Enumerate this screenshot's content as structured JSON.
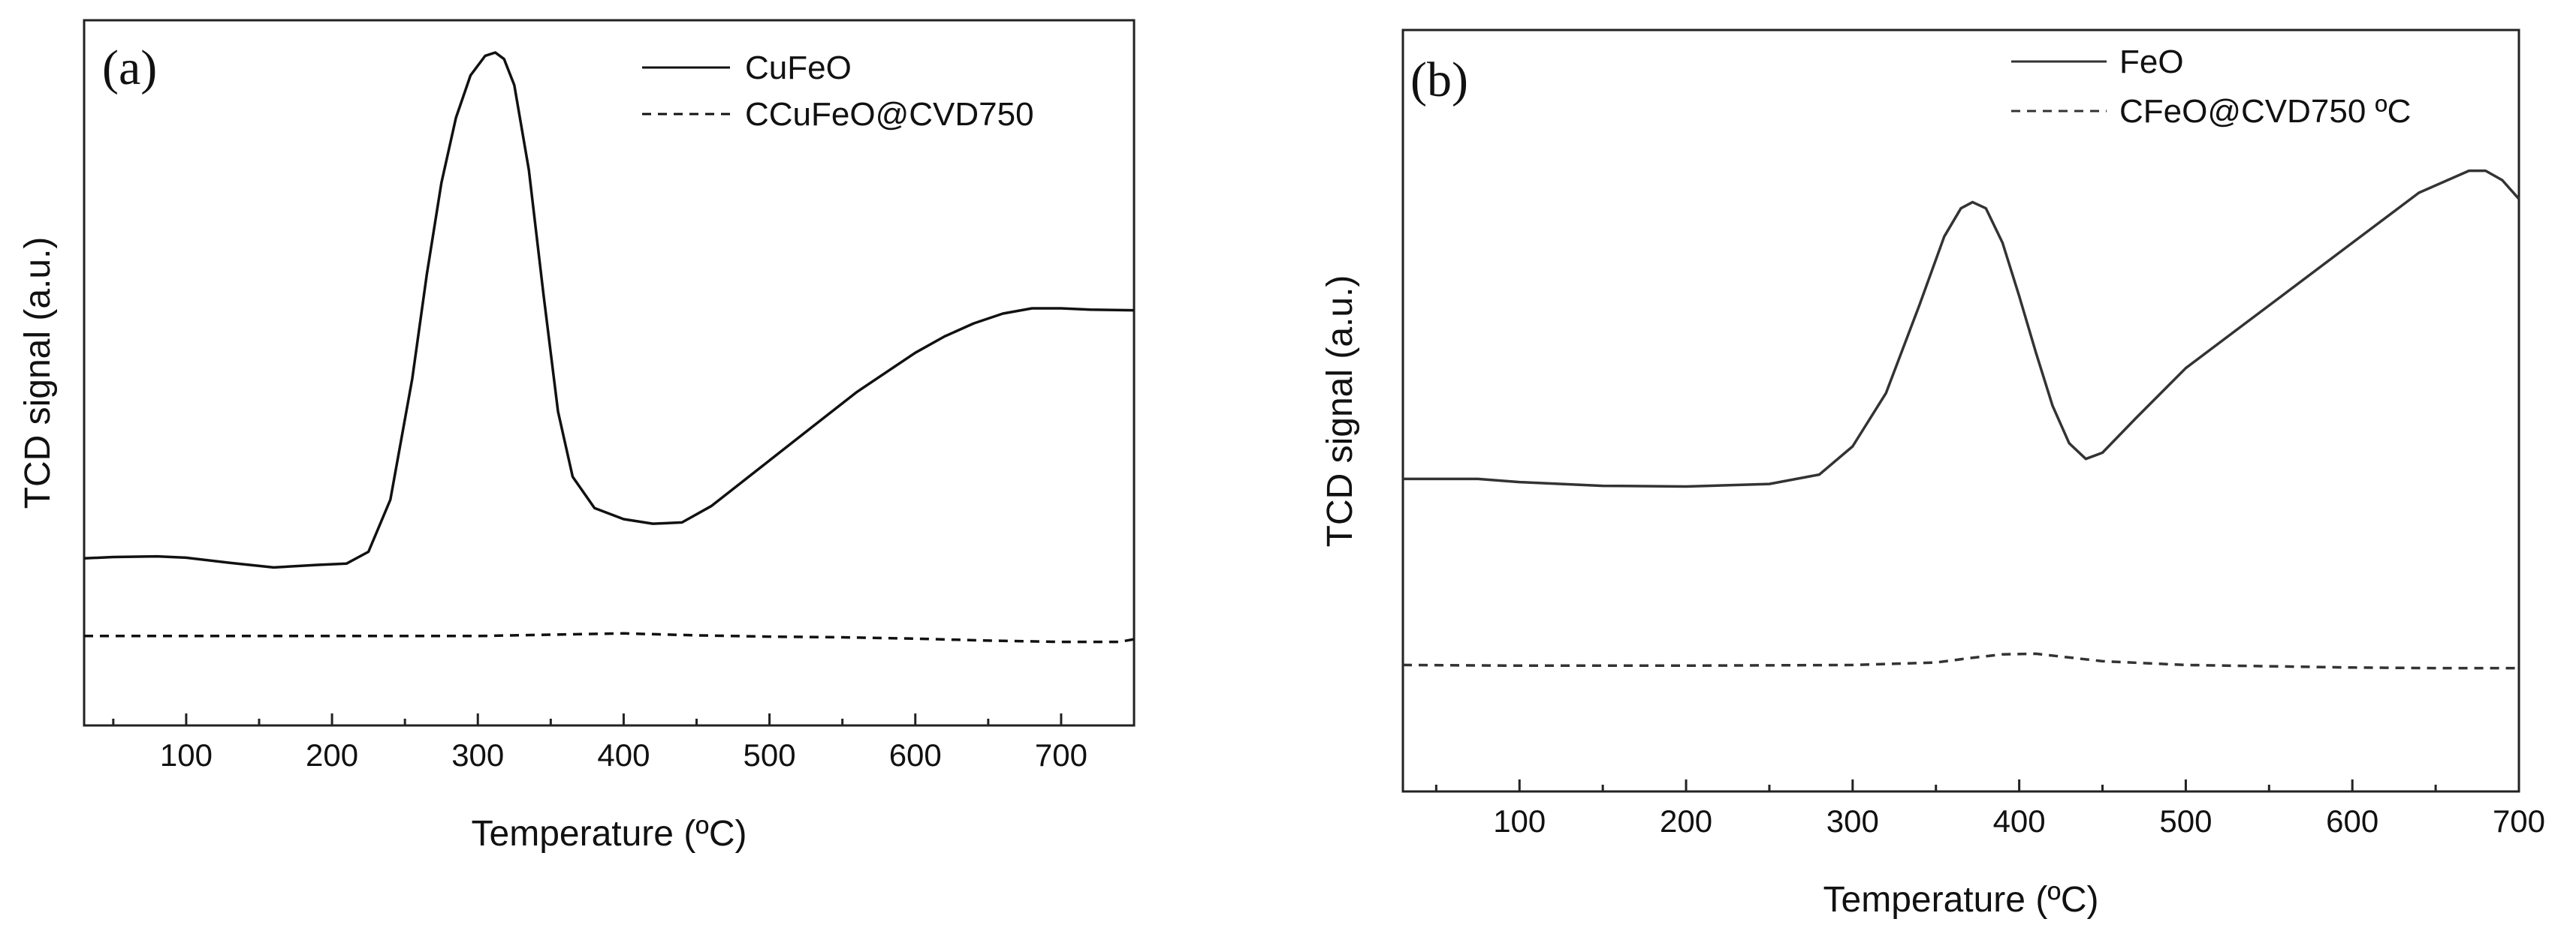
{
  "chart_data": [
    {
      "panel": "(a)",
      "type": "line",
      "xlabel": "Temperature (ºC)",
      "ylabel": "TCD signal (a.u.)",
      "xlim": [
        30,
        750
      ],
      "ylim": [
        0,
        100
      ],
      "xticks": [
        100,
        200,
        300,
        400,
        500,
        600,
        700
      ],
      "legend_position": "top-right",
      "series": [
        {
          "name": "CuFeO",
          "style": "solid",
          "x": [
            30,
            50,
            80,
            100,
            130,
            160,
            190,
            210,
            225,
            240,
            255,
            265,
            275,
            285,
            295,
            305,
            312,
            318,
            325,
            335,
            345,
            355,
            365,
            380,
            400,
            420,
            440,
            460,
            480,
            500,
            520,
            540,
            560,
            580,
            600,
            620,
            640,
            660,
            680,
            700,
            720,
            750
          ],
          "y": [
            22.5,
            22.7,
            22.8,
            22.6,
            21.8,
            21.1,
            21.5,
            21.7,
            23.5,
            31.5,
            50,
            66,
            80,
            90,
            96.5,
            99.5,
            100,
            99,
            95,
            82,
            63,
            45,
            35,
            30.2,
            28.5,
            27.8,
            28,
            30.5,
            34,
            37.5,
            41,
            44.5,
            48,
            51,
            54,
            56.5,
            58.5,
            60,
            60.8,
            60.8,
            60.6,
            60.5
          ]
        },
        {
          "name": "CCuFeO@CVD750",
          "style": "dashed",
          "x": [
            30,
            100,
            200,
            300,
            350,
            400,
            450,
            500,
            550,
            600,
            650,
            700,
            740,
            750
          ],
          "y": [
            10.6,
            10.6,
            10.6,
            10.6,
            10.8,
            11,
            10.7,
            10.5,
            10.4,
            10.2,
            9.9,
            9.7,
            9.7,
            10.1
          ]
        }
      ]
    },
    {
      "panel": "(b)",
      "type": "line",
      "xlabel": "Temperature (ºC)",
      "ylabel": "TCD signal (a.u.)",
      "xlim": [
        30,
        700
      ],
      "ylim": [
        0,
        100
      ],
      "xticks": [
        100,
        200,
        300,
        400,
        500,
        600,
        700
      ],
      "legend_position": "top-right",
      "series": [
        {
          "name": "FeO",
          "style": "solid",
          "x": [
            30,
            50,
            75,
            100,
            150,
            200,
            250,
            280,
            300,
            320,
            340,
            355,
            365,
            372,
            380,
            390,
            400,
            410,
            420,
            430,
            440,
            450,
            470,
            500,
            530,
            560,
            600,
            640,
            670,
            680,
            690,
            700
          ],
          "y": [
            43.3,
            43.3,
            43.3,
            42.8,
            42.2,
            42.1,
            42.5,
            44,
            48.5,
            57,
            71,
            82,
            86.5,
            87.5,
            86.5,
            81,
            72.5,
            63.5,
            55,
            49,
            46.5,
            47.5,
            53,
            61,
            67,
            73,
            81,
            89,
            92.5,
            92.5,
            91,
            88
          ]
        },
        {
          "name": "CFeO@CVD750 ºC",
          "style": "dashed",
          "x": [
            30,
            100,
            200,
            300,
            350,
            370,
            390,
            410,
            430,
            450,
            500,
            550,
            600,
            650,
            700
          ],
          "y": [
            13.6,
            13.5,
            13.5,
            13.6,
            14,
            14.7,
            15.3,
            15.4,
            14.8,
            14.2,
            13.6,
            13.4,
            13.2,
            13.1,
            13.1
          ]
        }
      ]
    }
  ]
}
